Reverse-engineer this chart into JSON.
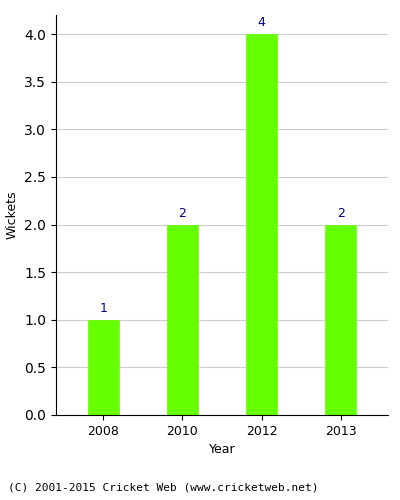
{
  "years": [
    "2008",
    "2010",
    "2012",
    "2013"
  ],
  "values": [
    1,
    2,
    4,
    2
  ],
  "bar_color": "#66ff00",
  "bar_edge_color": "#66ff00",
  "label_color": "#00008B",
  "title": "",
  "xlabel": "Year",
  "ylabel": "Wickets",
  "ylim": [
    0,
    4.2
  ],
  "yticks": [
    0.0,
    0.5,
    1.0,
    1.5,
    2.0,
    2.5,
    3.0,
    3.5,
    4.0
  ],
  "grid_color": "#cccccc",
  "background_color": "#ffffff",
  "footnote": "(C) 2001-2015 Cricket Web (www.cricketweb.net)",
  "label_fontsize": 9,
  "axis_fontsize": 9,
  "footnote_fontsize": 8,
  "bar_width": 0.4
}
